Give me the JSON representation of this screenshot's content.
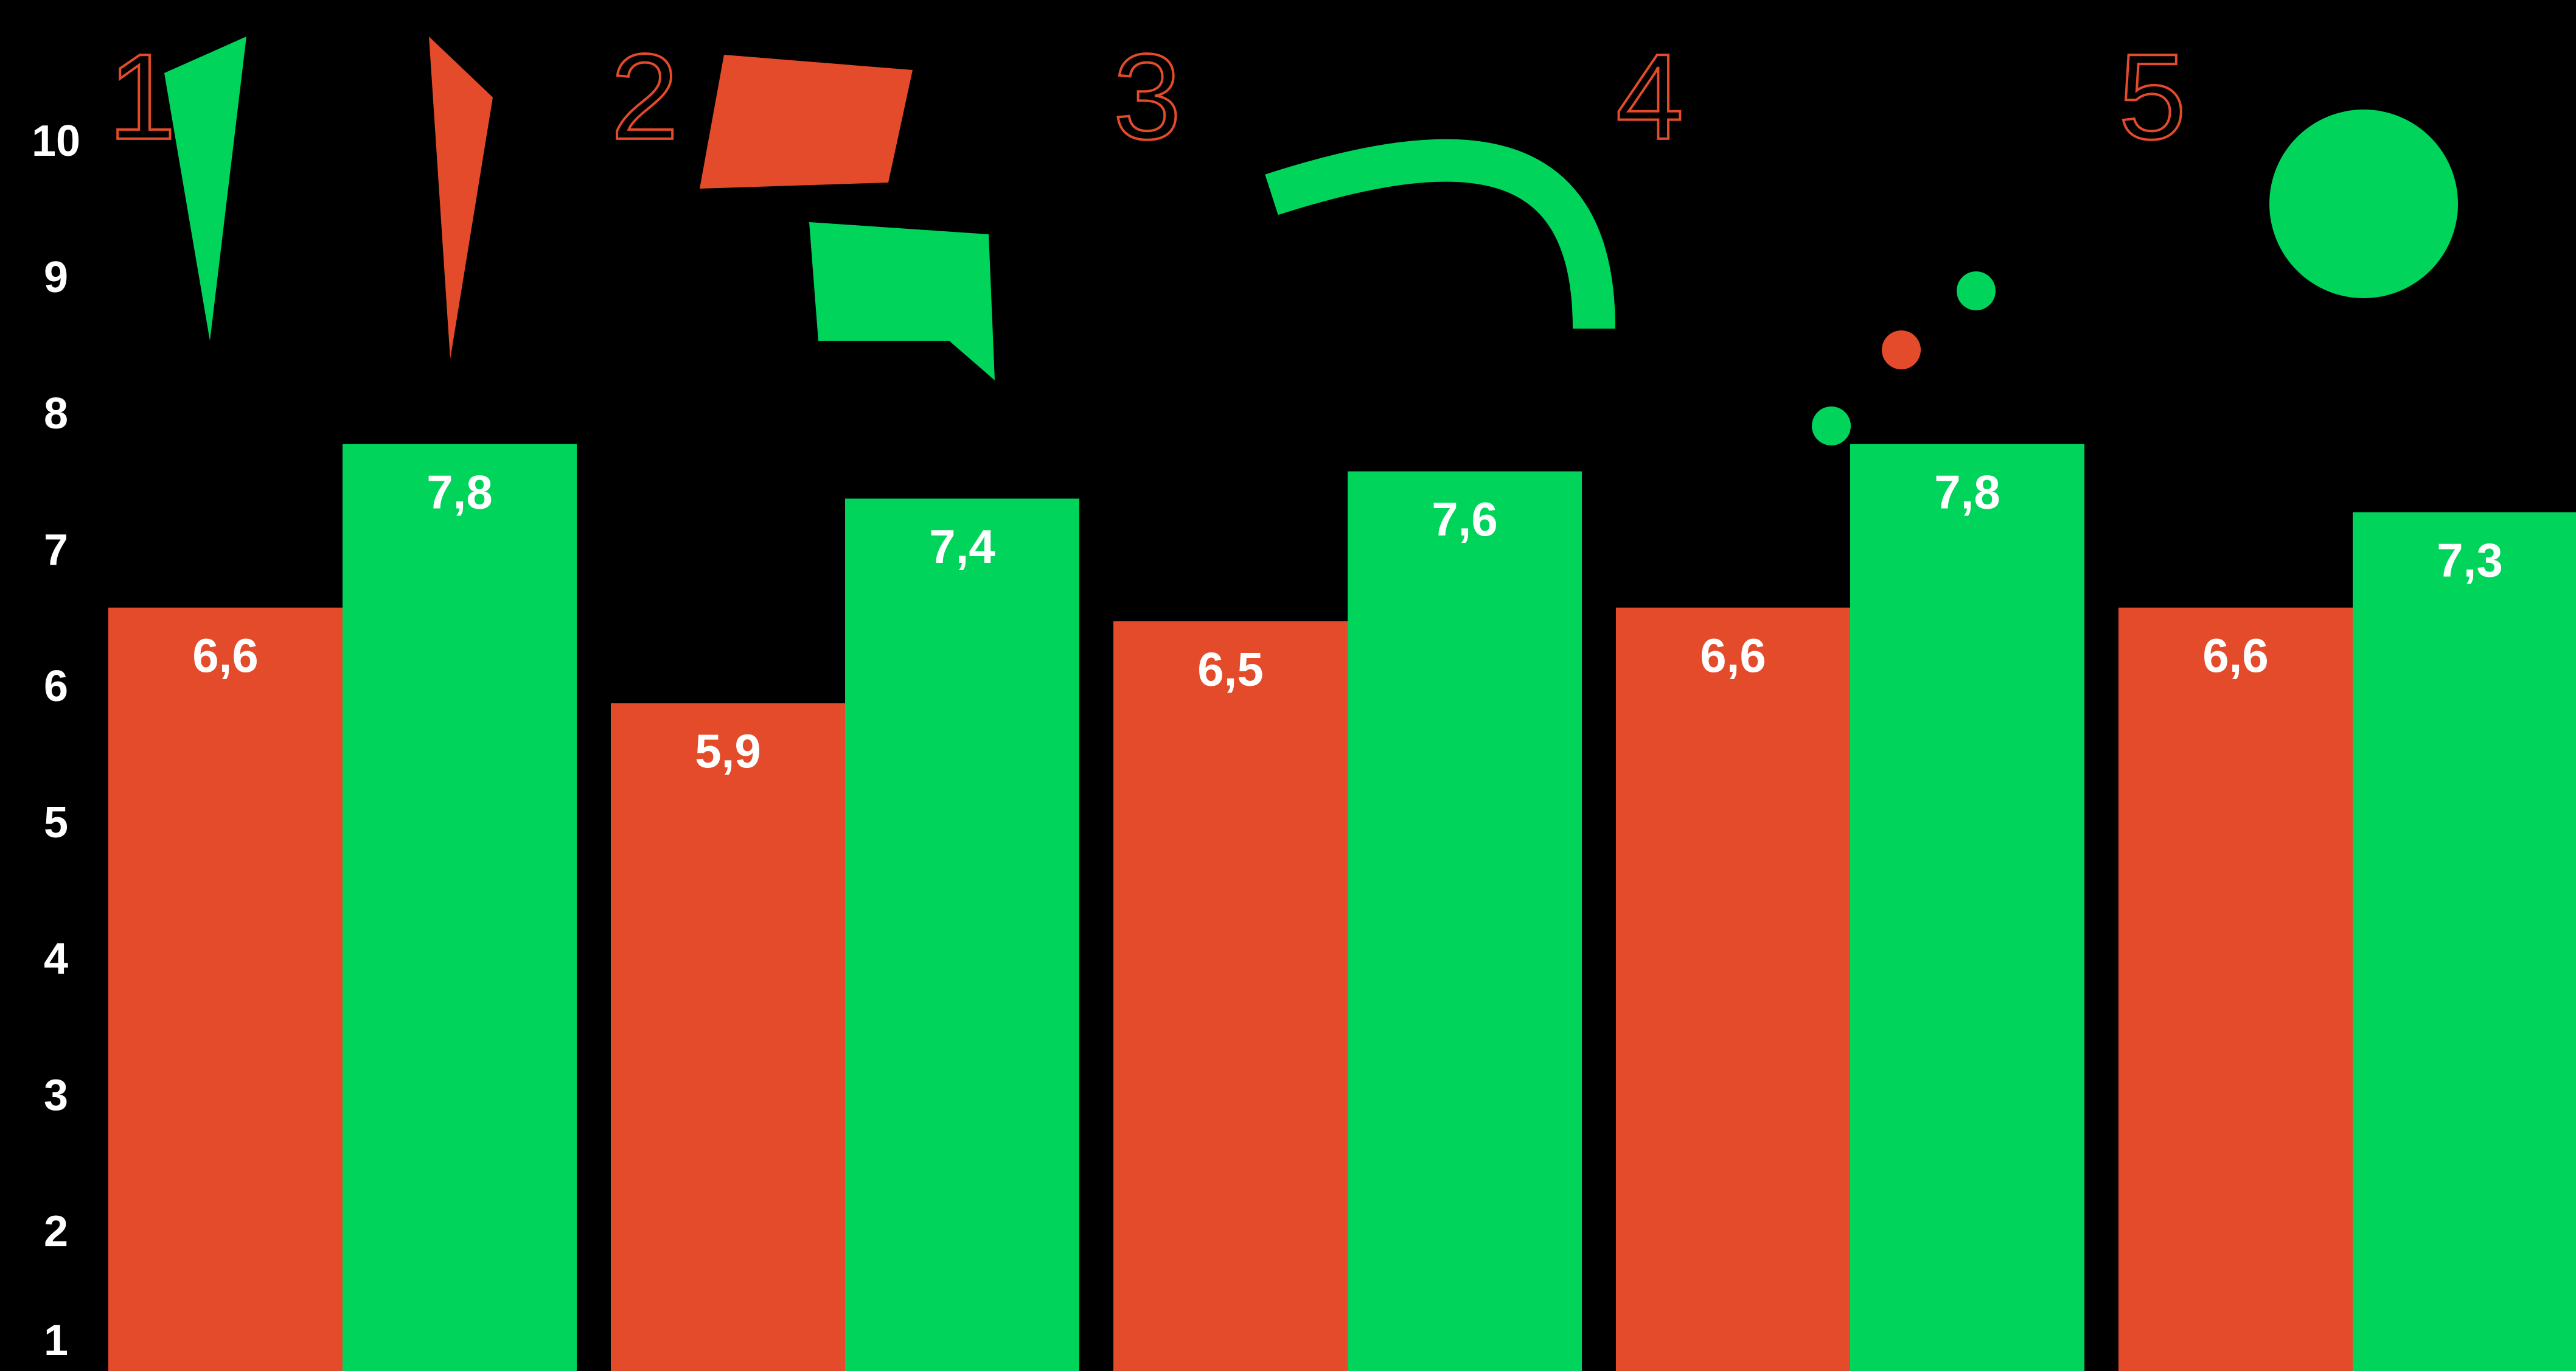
{
  "chart_data": {
    "type": "bar",
    "categories": [
      "1",
      "2",
      "3",
      "4",
      "5"
    ],
    "series": [
      {
        "color": "#e34b2a",
        "values": [
          6.6,
          5.9,
          6.5,
          6.6,
          6.6
        ],
        "value_labels": [
          "6,6",
          "5,9",
          "6,5",
          "6,6",
          "6,6"
        ]
      },
      {
        "color": "#00d45a",
        "values": [
          7.8,
          7.4,
          7.6,
          7.8,
          7.3
        ],
        "value_labels": [
          "7,8",
          "7,4",
          "7,6",
          "7,8",
          "7,3"
        ]
      }
    ],
    "ylim": [
      1,
      10
    ],
    "yticks": [
      1,
      2,
      3,
      4,
      5,
      6,
      7,
      8,
      9,
      10
    ],
    "grid": false
  }
}
